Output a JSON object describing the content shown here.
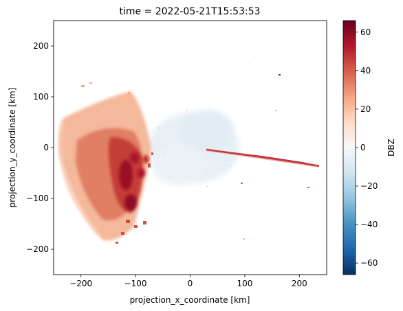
{
  "chart_data": {
    "type": "heatmap",
    "title": "time = 2022-05-21T15:53:53",
    "xlabel": "projection_x_coordinate [km]",
    "ylabel": "projection_y_coordinate [km]",
    "xlim": [
      -250,
      250
    ],
    "ylim": [
      -250,
      250
    ],
    "x_ticks": [
      {
        "value": -200,
        "label": "−200"
      },
      {
        "value": -100,
        "label": "−100"
      },
      {
        "value": 0,
        "label": "0"
      },
      {
        "value": 100,
        "label": "100"
      },
      {
        "value": 200,
        "label": "200"
      }
    ],
    "y_ticks": [
      {
        "value": 200,
        "label": "200"
      },
      {
        "value": 100,
        "label": "100"
      },
      {
        "value": 0,
        "label": "0"
      },
      {
        "value": -100,
        "label": "−100"
      },
      {
        "value": -200,
        "label": "−200"
      }
    ],
    "colorbar": {
      "label": "DBZ",
      "range": [
        -66,
        66
      ],
      "colormap": "RdBu_r",
      "ticks": [
        {
          "value": 60,
          "label": "60"
        },
        {
          "value": 40,
          "label": "40"
        },
        {
          "value": 20,
          "label": "20"
        },
        {
          "value": 0,
          "label": "0"
        },
        {
          "value": -20,
          "label": "−20"
        },
        {
          "value": -40,
          "label": "−40"
        },
        {
          "value": -60,
          "label": "−60"
        }
      ]
    },
    "grid": false,
    "regions": [
      {
        "name": "western reflectivity arc",
        "x_range": [
          -245,
          -90
        ],
        "y_range": [
          -200,
          105
        ],
        "dbz_typical": [
          15,
          30
        ]
      },
      {
        "name": "western convective core",
        "x_range": [
          -190,
          -100
        ],
        "y_range": [
          -160,
          40
        ],
        "dbz_typical": [
          35,
          50
        ]
      },
      {
        "name": "strongest cells",
        "x_range": [
          -135,
          -90
        ],
        "y_range": [
          -130,
          -20
        ],
        "dbz_typical": [
          50,
          62
        ]
      },
      {
        "name": "weak clear-air echoes",
        "x_range": [
          -70,
          90
        ],
        "y_range": [
          -110,
          90
        ],
        "dbz_typical": [
          -10,
          5
        ]
      },
      {
        "name": "eastward spike",
        "x_range": [
          30,
          240
        ],
        "y_range": [
          -38,
          0
        ],
        "dbz_typical": [
          40,
          55
        ]
      }
    ]
  }
}
